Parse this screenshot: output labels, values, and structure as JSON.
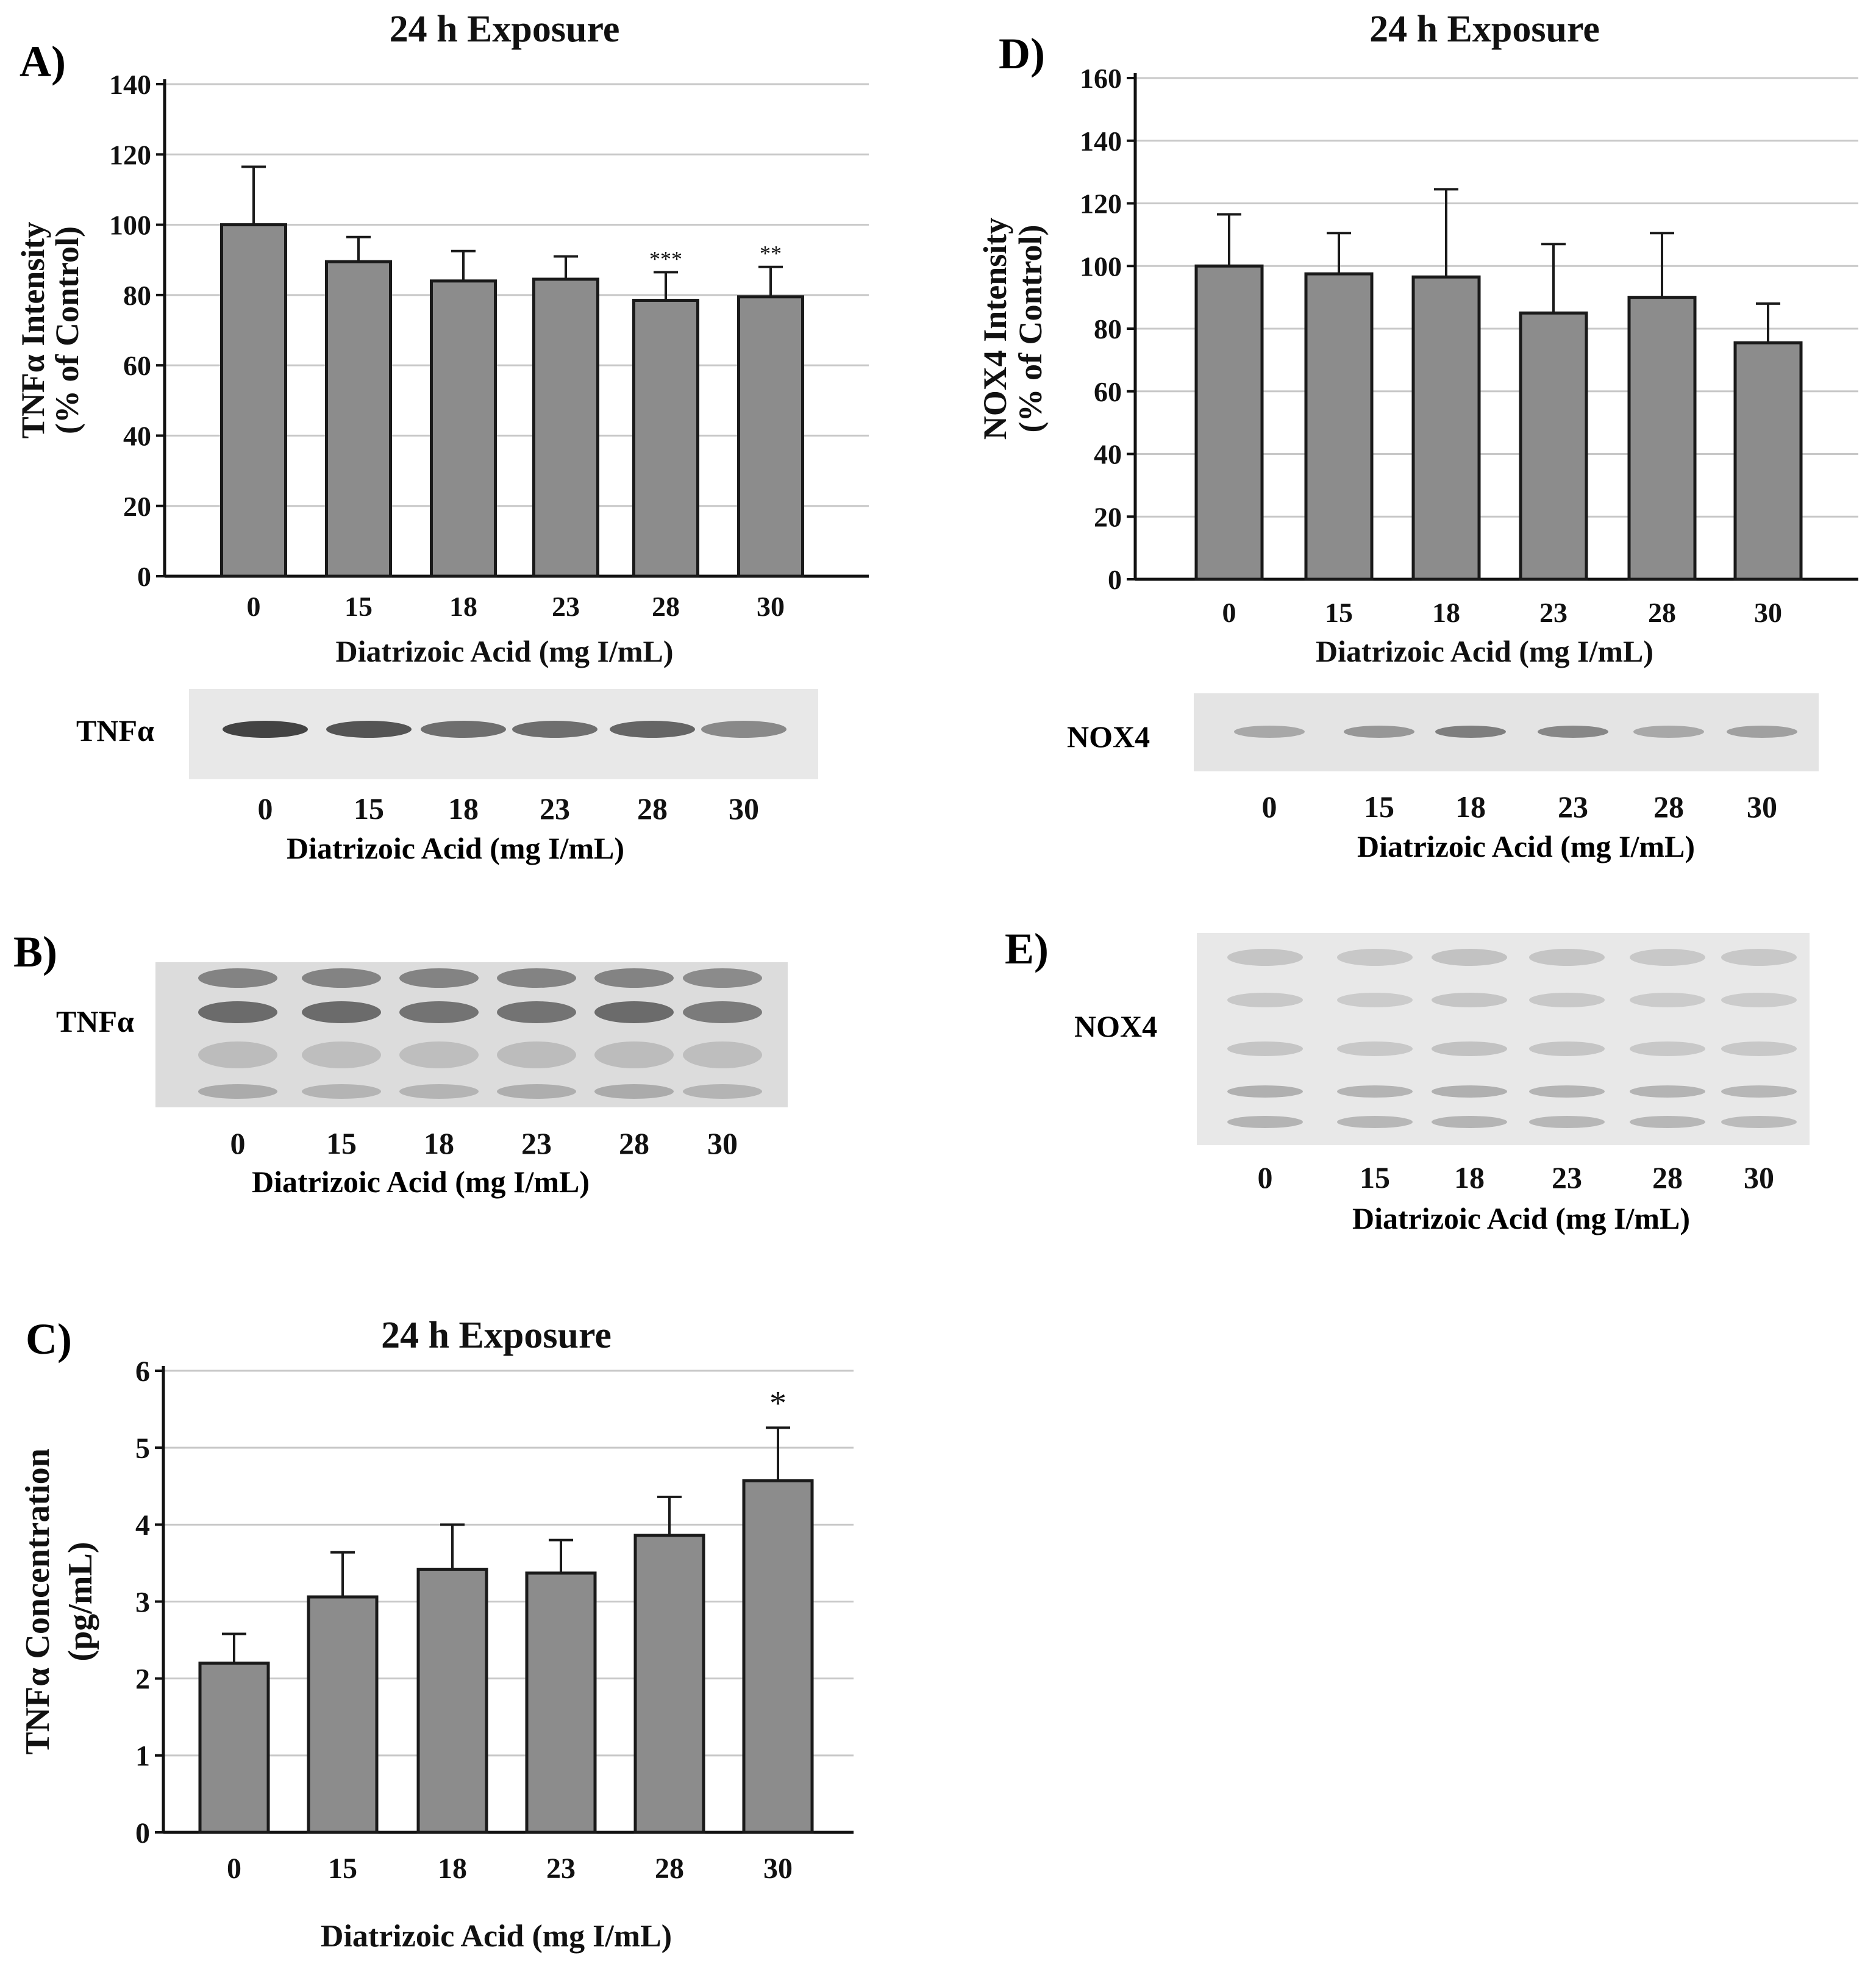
{
  "colors": {
    "bar_fill": "#8c8c8c",
    "bar_stroke": "#1a1a1a",
    "grid": "#c8c8c8",
    "axis": "#111111",
    "text": "#111111",
    "blot_bg": "#e6e6e6",
    "blot_band": "#3a3a3a"
  },
  "panels": {
    "A": {
      "label": "A)"
    },
    "B": {
      "label": "B)",
      "blot_label": "TNFα",
      "lanes": [
        "0",
        "15",
        "18",
        "23",
        "28",
        "30"
      ],
      "xlabel": "Diatrizoic Acid (mg I/mL)"
    },
    "C": {
      "label": "C)"
    },
    "D": {
      "label": "D)"
    },
    "E": {
      "label": "E)",
      "blot_label": "NOX4",
      "lanes": [
        "0",
        "15",
        "18",
        "23",
        "28",
        "30"
      ],
      "xlabel": "Diatrizoic Acid (mg I/mL)"
    }
  },
  "blots": {
    "A": {
      "label": "TNFα",
      "lanes": [
        "0",
        "15",
        "18",
        "23",
        "28",
        "30"
      ],
      "xlabel": "Diatrizoic Acid (mg I/mL)"
    },
    "D": {
      "label": "NOX4",
      "lanes": [
        "0",
        "15",
        "18",
        "23",
        "28",
        "30"
      ],
      "xlabel": "Diatrizoic Acid (mg I/mL)"
    }
  },
  "chart_data": [
    {
      "id": "A",
      "type": "bar",
      "title": "24 h Exposure",
      "ylabel": "TNFα Intensity",
      "ylabel2": "(% of Control)",
      "xlabel": "Diatrizoic Acid (mg I/mL)",
      "categories": [
        "0",
        "15",
        "18",
        "23",
        "28",
        "30"
      ],
      "values": [
        100,
        89.5,
        84,
        84.5,
        78.5,
        79.5
      ],
      "errors": [
        16.5,
        7,
        8.5,
        6.5,
        8,
        8.5
      ],
      "annotations": [
        "",
        "",
        "",
        "",
        "***",
        "**"
      ],
      "ylim": [
        0,
        140
      ],
      "yticks": [
        0,
        20,
        40,
        60,
        80,
        100,
        120,
        140
      ],
      "grid": true
    },
    {
      "id": "C",
      "type": "bar",
      "title": "24 h Exposure",
      "ylabel": "TNFα Concentration",
      "ylabel2": "(pg/mL)",
      "xlabel": "Diatrizoic Acid (mg I/mL)",
      "categories": [
        "0",
        "15",
        "18",
        "23",
        "28",
        "30"
      ],
      "values": [
        2.2,
        3.06,
        3.42,
        3.37,
        3.86,
        4.57
      ],
      "errors": [
        0.38,
        0.58,
        0.58,
        0.43,
        0.5,
        0.69
      ],
      "annotations": [
        "",
        "",
        "",
        "",
        "",
        "*"
      ],
      "ylim": [
        0,
        6
      ],
      "yticks": [
        0,
        1,
        2,
        3,
        4,
        5,
        6
      ],
      "grid": true
    },
    {
      "id": "D",
      "type": "bar",
      "title": "24 h Exposure",
      "ylabel": "NOX4 Intensity",
      "ylabel2": "(% of Control)",
      "xlabel": "Diatrizoic Acid (mg I/mL)",
      "categories": [
        "0",
        "15",
        "18",
        "23",
        "28",
        "30"
      ],
      "values": [
        100,
        97.5,
        96.5,
        85,
        90,
        75.5
      ],
      "errors": [
        16.5,
        13,
        28,
        22,
        20.5,
        12.5
      ],
      "annotations": [
        "",
        "",
        "",
        "",
        "",
        ""
      ],
      "ylim": [
        0,
        160
      ],
      "yticks": [
        0,
        20,
        40,
        60,
        80,
        100,
        120,
        140,
        160
      ],
      "grid": true
    }
  ]
}
